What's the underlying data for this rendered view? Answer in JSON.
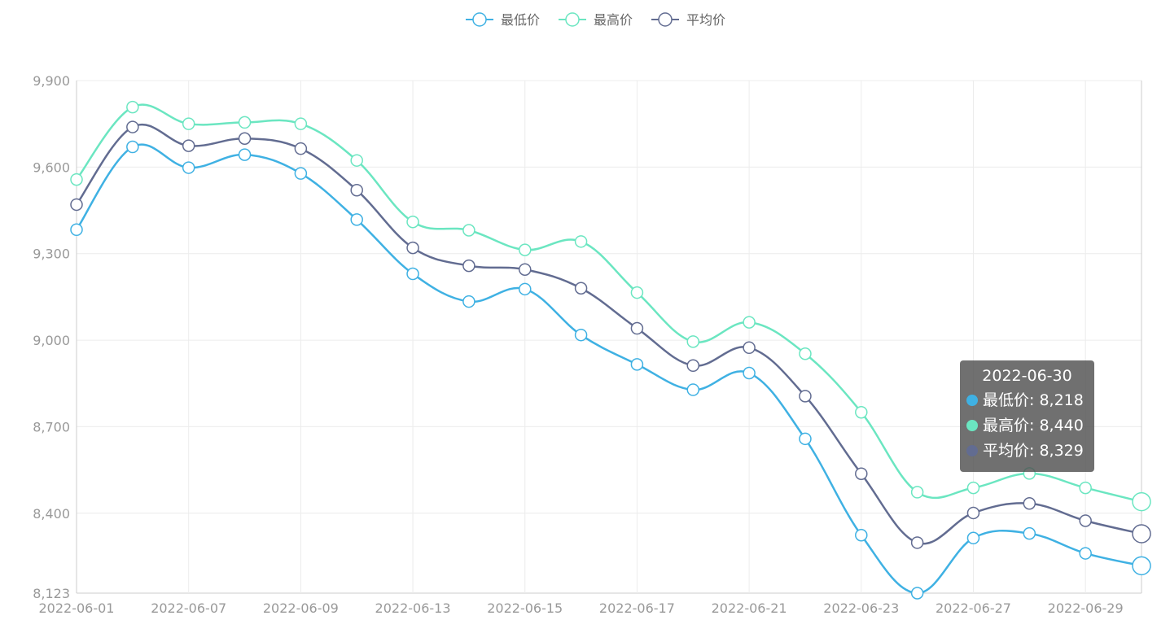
{
  "chart_data": {
    "type": "line",
    "smooth": true,
    "legend_position": "top-center",
    "grid": true,
    "x": [
      "2022-06-01",
      "2022-06-03",
      "2022-06-07",
      "2022-06-08",
      "2022-06-09",
      "2022-06-10",
      "2022-06-13",
      "2022-06-14",
      "2022-06-15",
      "2022-06-16",
      "2022-06-17",
      "2022-06-20",
      "2022-06-21",
      "2022-06-22",
      "2022-06-23",
      "2022-06-24",
      "2022-06-27",
      "2022-06-28",
      "2022-06-29",
      "2022-06-30"
    ],
    "x_tick_labels": [
      "2022-06-01",
      "2022-06-07",
      "2022-06-09",
      "2022-06-13",
      "2022-06-15",
      "2022-06-17",
      "2022-06-21",
      "2022-06-23",
      "2022-06-27",
      "2022-06-29"
    ],
    "y_tick_labels": [
      "8,123",
      "8,400",
      "8,700",
      "9,000",
      "9,300",
      "9,600",
      "9,900"
    ],
    "ylim": [
      8123,
      9900
    ],
    "series": [
      {
        "name": "最低价",
        "color": "#3fb1e3",
        "values": [
          9383,
          9670,
          9598,
          9643,
          9578,
          9418,
          9230,
          9134,
          9177,
          9018,
          8916,
          8828,
          8886,
          8658,
          8324,
          8123,
          8314,
          8330,
          8261,
          8218
        ]
      },
      {
        "name": "最高价",
        "color": "#6be6c1",
        "values": [
          9557,
          9808,
          9750,
          9755,
          9750,
          9623,
          9410,
          9381,
          9313,
          9342,
          9165,
          8995,
          9062,
          8953,
          8750,
          8473,
          8488,
          8538,
          8488,
          8440
        ]
      },
      {
        "name": "平均价",
        "color": "#626c91",
        "values": [
          9470,
          9739,
          9674,
          9699,
          9664,
          9520,
          9320,
          9258,
          9245,
          9180,
          9041,
          8912,
          8974,
          8806,
          8537,
          8298,
          8401,
          8434,
          8374,
          8329
        ]
      }
    ],
    "tooltip": {
      "title": "2022-06-30",
      "rows": [
        {
          "label": "最低价: 8,218",
          "color": "#3fb1e3"
        },
        {
          "label": "最高价: 8,440",
          "color": "#6be6c1"
        },
        {
          "label": "平均价: 8,329",
          "color": "#626c91"
        }
      ]
    }
  }
}
